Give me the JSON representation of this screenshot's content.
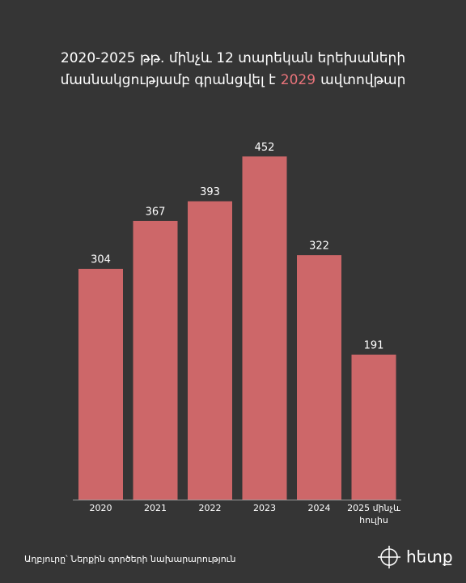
{
  "chart_data": {
    "type": "bar",
    "title": {
      "line1": "2020-2025 թթ. մինչև 12 տարեկան երեխաների",
      "line2_before": "մասնակցությամբ գրանցվել է",
      "highlight": "2029",
      "line2_after": "ավտովթար"
    },
    "highlight_color": "#e8737a",
    "categories": [
      "2020",
      "2021",
      "2022",
      "2023",
      "2024",
      [
        "2025 մինչև",
        "հուլիս"
      ]
    ],
    "values": [
      304,
      367,
      393,
      452,
      322,
      191
    ],
    "color": "#cd6769",
    "ylim": [
      0,
      480
    ],
    "source": "Աղբյուրը՝ Ներքին գործերի նախարարություն",
    "logo": "հետք"
  }
}
